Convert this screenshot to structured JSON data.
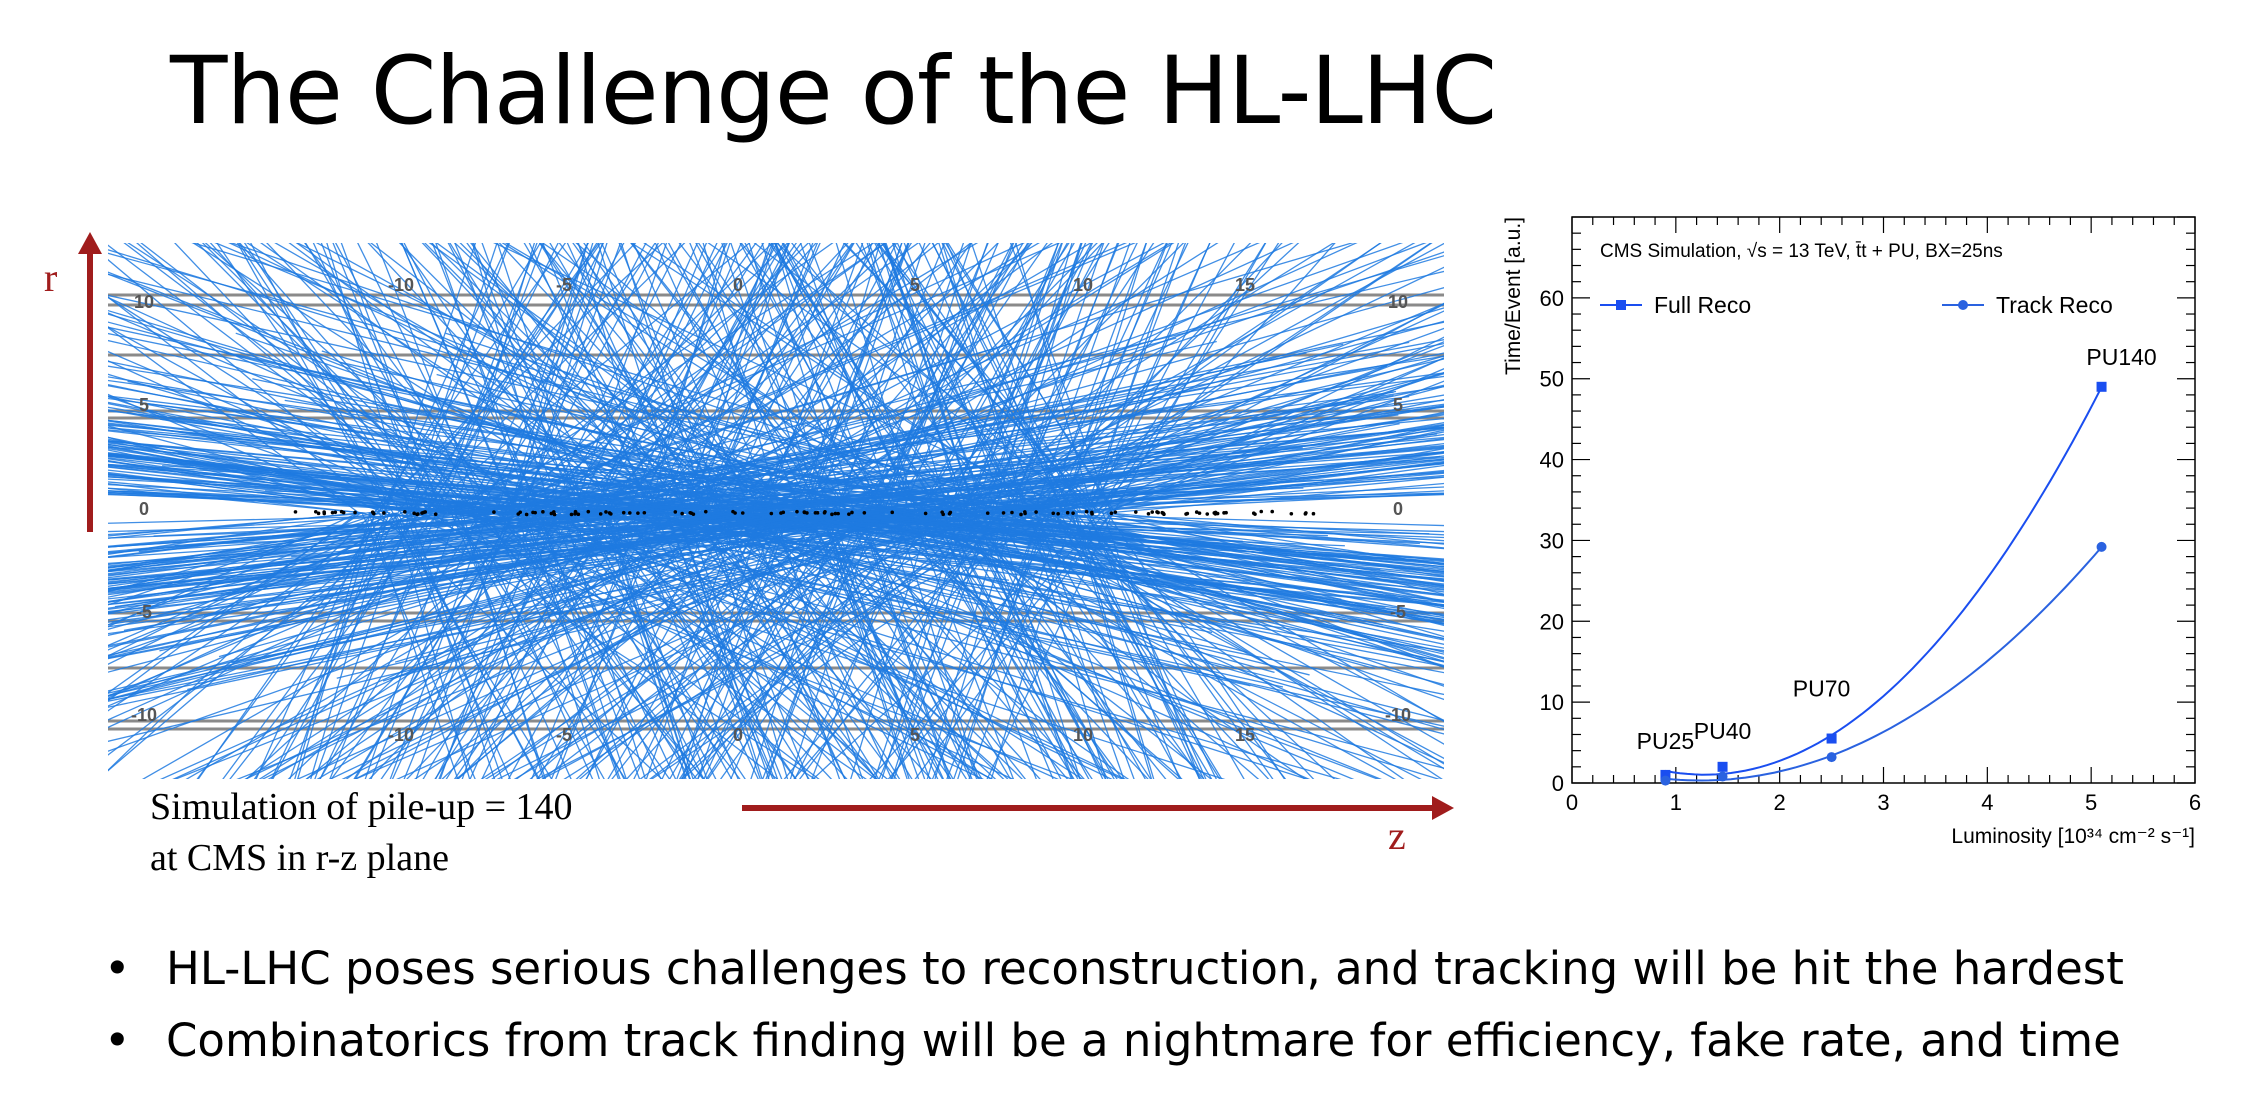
{
  "slide": {
    "title": "The Challenge of the HL-LHC",
    "bullets": [
      "HL-LHC poses serious challenges to reconstruction, and tracking will be hit the hardest",
      "Combinatorics from track finding will be a nightmare for efficiency, fake rate, and time"
    ]
  },
  "event_display": {
    "r_label": "r",
    "z_label": "z",
    "caption_line1": "Simulation of pile-up = 140",
    "caption_line2": "at CMS in r-z plane",
    "z_ticks": [
      "-10",
      "-5",
      "0",
      "5",
      "10",
      "15"
    ],
    "r_ticks_left": [
      "10",
      "5",
      "0",
      "-5",
      "-10"
    ],
    "r_ticks_right": [
      "10",
      "5",
      "0",
      "-5",
      "-10"
    ],
    "track_color": "#1f7ae0",
    "layer_color": "#8a8a8a",
    "arrow_color": "#a01c1c"
  },
  "chart_data": {
    "type": "line",
    "title": "CMS Simulation, √s = 13 TeV, t̄t + PU, BX=25ns",
    "xlabel": "Luminosity [10³⁴ cm⁻² s⁻¹]",
    "ylabel": "Time/Event [a.u.]",
    "xlim": [
      0,
      6
    ],
    "ylim": [
      0,
      70
    ],
    "xticks": [
      0,
      1,
      2,
      3,
      4,
      5,
      6
    ],
    "yticks": [
      0,
      10,
      20,
      30,
      40,
      50,
      60
    ],
    "series": [
      {
        "name": "Full Reco",
        "marker": "square",
        "color": "#1a4ef0",
        "x": [
          0.9,
          1.45,
          2.5,
          5.1
        ],
        "y": [
          1.0,
          2.0,
          5.5,
          49.0
        ]
      },
      {
        "name": "Track Reco",
        "marker": "circle",
        "color": "#2a62e0",
        "x": [
          0.9,
          1.45,
          2.5,
          5.1
        ],
        "y": [
          0.3,
          0.8,
          3.2,
          29.2
        ]
      }
    ],
    "annotations": [
      {
        "text": "PU25",
        "x": 0.9,
        "y": 1.0
      },
      {
        "text": "PU40",
        "x": 1.45,
        "y": 2.0
      },
      {
        "text": "PU70",
        "x": 2.5,
        "y": 5.5
      },
      {
        "text": "PU140",
        "x": 5.1,
        "y": 49.0
      }
    ],
    "legend_position": "top"
  }
}
